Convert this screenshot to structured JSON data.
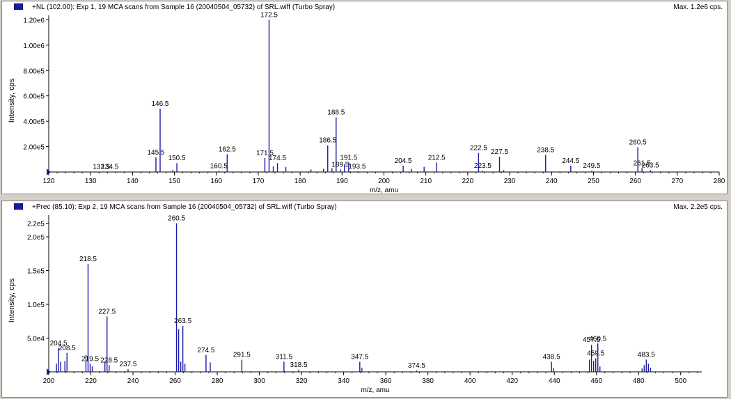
{
  "colors": {
    "peak": "#1a1aa6",
    "axis": "#000000",
    "swatch": "#1a1aa6",
    "marker": "#1a1aa6"
  },
  "panels": [
    {
      "title": "+NL (102.00): Exp 1, 19 MCA scans from Sample 16 (20040504_05732) of SRL.wiff (Turbo Spray)",
      "max_label": "Max. 1.2e6 cps."
    },
    {
      "title": "+Prec (85.10): Exp 2, 19 MCA scans from Sample 16 (20040504_05732) of SRL.wiff (Turbo Spray)",
      "max_label": "Max. 2.2e5 cps."
    }
  ],
  "chart_data": [
    {
      "type": "bar",
      "xlabel": "m/z, amu",
      "ylabel": "Intensity, cps",
      "xlim": [
        120,
        280
      ],
      "ylim": [
        0,
        1235000
      ],
      "xticks": [
        120,
        130,
        140,
        150,
        160,
        170,
        180,
        190,
        200,
        210,
        220,
        230,
        240,
        250,
        260,
        270,
        280
      ],
      "yticks": [
        {
          "value": 200000,
          "label": "2.00e5"
        },
        {
          "value": 400000,
          "label": "4.00e5"
        },
        {
          "value": 600000,
          "label": "6.00e5"
        },
        {
          "value": 800000,
          "label": "8.00e5"
        },
        {
          "value": 1000000,
          "label": "1.00e6"
        },
        {
          "value": 1200000,
          "label": "1.20e6"
        }
      ],
      "peaks": [
        {
          "x": 132.5,
          "y": 3000,
          "label": "132.5"
        },
        {
          "x": 134.5,
          "y": 2000,
          "label": "134.5"
        },
        {
          "x": 145.5,
          "y": 115000,
          "label": "145.5"
        },
        {
          "x": 146.5,
          "y": 500000,
          "label": "146.5"
        },
        {
          "x": 149.5,
          "y": 15000
        },
        {
          "x": 150.5,
          "y": 70000,
          "label": "150.5"
        },
        {
          "x": 160.5,
          "y": 8000,
          "label": "160.5"
        },
        {
          "x": 162.5,
          "y": 140000,
          "label": "162.5"
        },
        {
          "x": 171.5,
          "y": 110000,
          "label": "171.5"
        },
        {
          "x": 172.5,
          "y": 1200000,
          "label": "172.5"
        },
        {
          "x": 173.5,
          "y": 45000
        },
        {
          "x": 174.5,
          "y": 70000,
          "label": "174.5"
        },
        {
          "x": 176.5,
          "y": 40000
        },
        {
          "x": 182.5,
          "y": 20000
        },
        {
          "x": 185.5,
          "y": 25000
        },
        {
          "x": 186.5,
          "y": 210000,
          "label": "186.5"
        },
        {
          "x": 187.5,
          "y": 30000
        },
        {
          "x": 188.5,
          "y": 430000,
          "label": "188.5"
        },
        {
          "x": 189.5,
          "y": 20000,
          "label": "189.5"
        },
        {
          "x": 190.5,
          "y": 60000
        },
        {
          "x": 191.5,
          "y": 75000,
          "label": "191.5"
        },
        {
          "x": 193.5,
          "y": 5000,
          "label": "193.5"
        },
        {
          "x": 204.5,
          "y": 50000,
          "label": "204.5"
        },
        {
          "x": 206.5,
          "y": 25000
        },
        {
          "x": 209.5,
          "y": 40000
        },
        {
          "x": 212.5,
          "y": 75000,
          "label": "212.5"
        },
        {
          "x": 222.5,
          "y": 150000,
          "label": "222.5"
        },
        {
          "x": 223.5,
          "y": 10000,
          "label": "223.5"
        },
        {
          "x": 227.5,
          "y": 120000,
          "label": "227.5"
        },
        {
          "x": 228.5,
          "y": 15000
        },
        {
          "x": 238.5,
          "y": 135000,
          "label": "238.5"
        },
        {
          "x": 244.5,
          "y": 50000,
          "label": "244.5"
        },
        {
          "x": 249.5,
          "y": 10000,
          "label": "249.5"
        },
        {
          "x": 260.5,
          "y": 195000,
          "label": "260.5"
        },
        {
          "x": 261.5,
          "y": 30000,
          "label": "261.5"
        },
        {
          "x": 263.5,
          "y": 15000,
          "label": "263.5"
        }
      ]
    },
    {
      "type": "bar",
      "xlabel": "m/z, amu",
      "ylabel": "Intensity, cps",
      "xlim": [
        200,
        510
      ],
      "ylim": [
        0,
        232000
      ],
      "xticks": [
        200,
        220,
        240,
        260,
        280,
        300,
        320,
        340,
        360,
        380,
        400,
        420,
        440,
        460,
        480,
        500
      ],
      "yticks": [
        {
          "value": 50000,
          "label": "5.0e4"
        },
        {
          "value": 100000,
          "label": "1.0e5"
        },
        {
          "value": 150000,
          "label": "1.5e5"
        },
        {
          "value": 200000,
          "label": "2.0e5"
        },
        {
          "value": 220000,
          "label": "2.2e5"
        }
      ],
      "peaks": [
        {
          "x": 203.5,
          "y": 12000
        },
        {
          "x": 204.5,
          "y": 35000,
          "label": "204.5"
        },
        {
          "x": 205.5,
          "y": 15000
        },
        {
          "x": 207.5,
          "y": 16000
        },
        {
          "x": 208.5,
          "y": 28000,
          "label": "208.5"
        },
        {
          "x": 217.5,
          "y": 25000
        },
        {
          "x": 218.5,
          "y": 160000,
          "label": "218.5"
        },
        {
          "x": 219.5,
          "y": 12000,
          "label": "219.5"
        },
        {
          "x": 220.5,
          "y": 8000
        },
        {
          "x": 226.5,
          "y": 15000
        },
        {
          "x": 227.5,
          "y": 82000,
          "label": "227.5"
        },
        {
          "x": 228.5,
          "y": 10000,
          "label": "228.5"
        },
        {
          "x": 237.5,
          "y": 4000,
          "label": "237.5"
        },
        {
          "x": 260.5,
          "y": 220000,
          "label": "260.5"
        },
        {
          "x": 261.5,
          "y": 63000
        },
        {
          "x": 262.5,
          "y": 15000
        },
        {
          "x": 263.5,
          "y": 68000,
          "label": "263.5"
        },
        {
          "x": 264.5,
          "y": 12000
        },
        {
          "x": 274.5,
          "y": 25000,
          "label": "274.5"
        },
        {
          "x": 276.5,
          "y": 14000
        },
        {
          "x": 291.5,
          "y": 18000,
          "label": "291.5"
        },
        {
          "x": 311.5,
          "y": 15000,
          "label": "311.5"
        },
        {
          "x": 318.5,
          "y": 3000,
          "label": "318.5"
        },
        {
          "x": 347.5,
          "y": 15000,
          "label": "347.5"
        },
        {
          "x": 348.5,
          "y": 6000
        },
        {
          "x": 374.5,
          "y": 2000,
          "label": "374.5"
        },
        {
          "x": 438.5,
          "y": 15000,
          "label": "438.5"
        },
        {
          "x": 439.5,
          "y": 6000
        },
        {
          "x": 456.5,
          "y": 18000
        },
        {
          "x": 457.5,
          "y": 40000,
          "label": "457.5"
        },
        {
          "x": 458.5,
          "y": 16000
        },
        {
          "x": 459.5,
          "y": 20000,
          "label": "459.5"
        },
        {
          "x": 460.5,
          "y": 42000,
          "label": "460.5"
        },
        {
          "x": 461.5,
          "y": 8000
        },
        {
          "x": 481.5,
          "y": 5000
        },
        {
          "x": 482.5,
          "y": 10000
        },
        {
          "x": 483.5,
          "y": 18000,
          "label": "483.5"
        },
        {
          "x": 484.5,
          "y": 12000
        },
        {
          "x": 485.5,
          "y": 6000
        }
      ]
    }
  ]
}
